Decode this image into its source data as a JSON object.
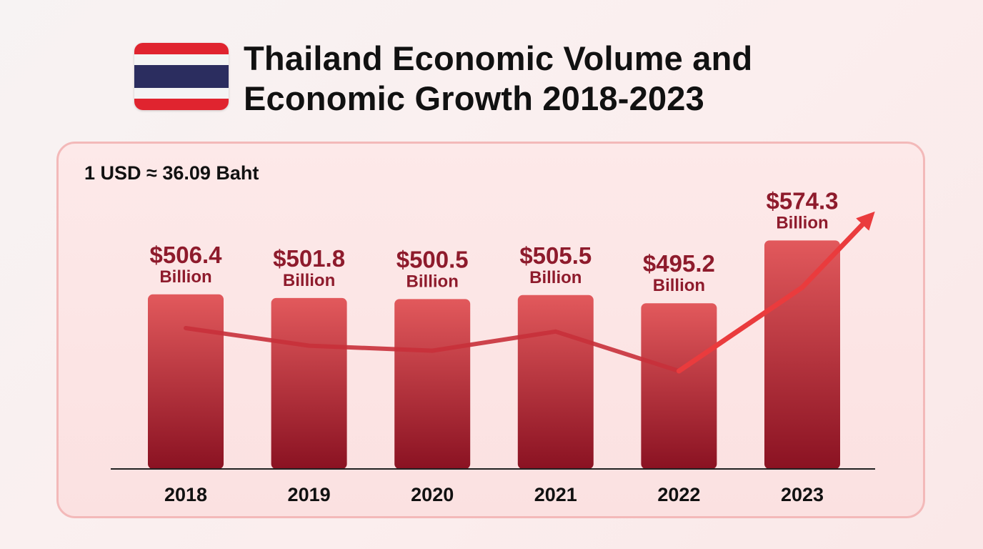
{
  "title_lines": [
    "Thailand Economic Volume and",
    "Economic Growth 2018-2023"
  ],
  "exchange_rate_note": "1 USD ≈ 36.09 Baht",
  "colors": {
    "bar_top": "#e2595c",
    "bar_bottom": "#8a1222",
    "label": "#8e1b2c",
    "trend_line": "#c8303a",
    "arrow": "#ea3b3d",
    "flag_red": "#e0242f",
    "flag_white": "#f4f4f4",
    "flag_blue": "#2b2d5f"
  },
  "flag_icon": "thailand-flag-icon",
  "chart_data": {
    "type": "bar",
    "categories": [
      "2018",
      "2019",
      "2020",
      "2021",
      "2022",
      "2023"
    ],
    "values": [
      506.4,
      501.8,
      500.5,
      505.5,
      495.2,
      574.3
    ],
    "value_labels": [
      "$506.4",
      "$501.8",
      "$500.5",
      "$505.5",
      "$495.2",
      "$574.3"
    ],
    "unit_label": "Billion",
    "trend_overlay": "line with upward arrow following values",
    "grid": false,
    "legend": "none"
  }
}
